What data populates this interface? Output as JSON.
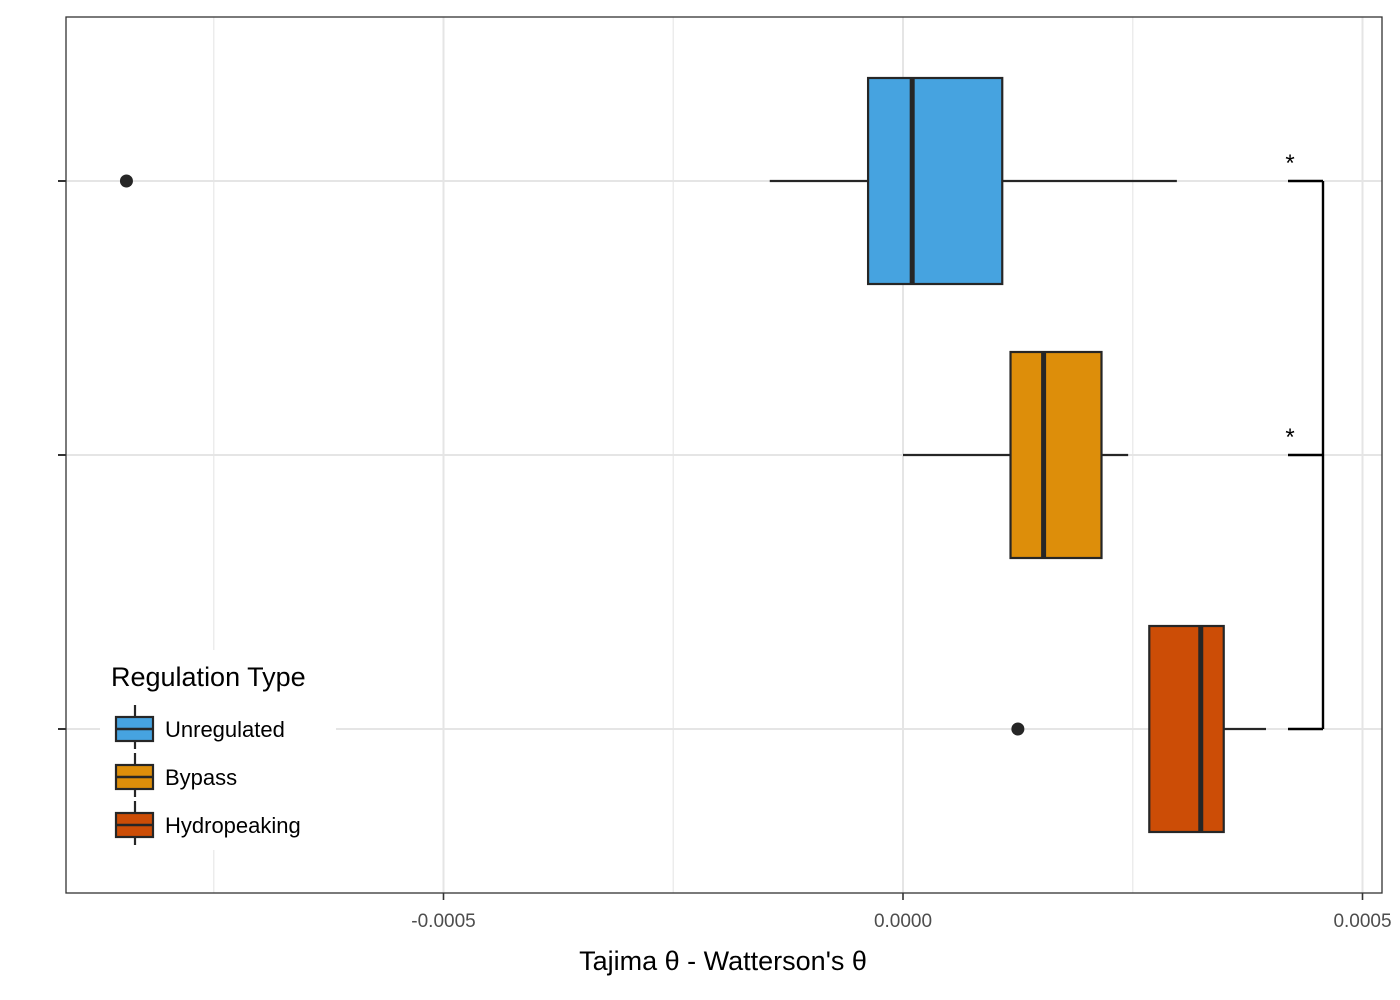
{
  "chart_data": {
    "type": "boxplot",
    "orientation": "horizontal",
    "xlabel": "Tajima θ - Watterson's θ",
    "xlim": [
      -0.00091,
      0.00052
    ],
    "x_ticks": [
      -0.0005,
      0.0,
      0.0005
    ],
    "x_tick_labels": [
      "-0.0005",
      "0.0000",
      "0.0005"
    ],
    "x_minor_gridlines": [
      -0.00075,
      -0.00025,
      0.00025
    ],
    "grid": true,
    "legend": {
      "title": "Regulation Type",
      "placement": "bottom-left",
      "entries": [
        "Unregulated",
        "Bypass",
        "Hydropeaking"
      ]
    },
    "series": [
      {
        "name": "Unregulated",
        "color": "#46A3E0",
        "whisker_low": -0.000145,
        "q1": -3.8e-05,
        "median": 1e-05,
        "q3": 0.000108,
        "whisker_high": 0.000298,
        "outliers": [
          -0.000845
        ]
      },
      {
        "name": "Bypass",
        "color": "#DD8E0A",
        "whisker_low": 0.0,
        "q1": 0.000117,
        "median": 0.000153,
        "q3": 0.000216,
        "whisker_high": 0.000245,
        "outliers": []
      },
      {
        "name": "Hydropeaking",
        "color": "#CC4D06",
        "whisker_low": 0.000268,
        "q1": 0.000268,
        "median": 0.000324,
        "q3": 0.000349,
        "whisker_high": 0.000395,
        "outliers": [
          0.000125
        ]
      }
    ],
    "significance": {
      "bracket_to": "Hydropeaking",
      "marks": [
        {
          "group": "Unregulated",
          "label": "*"
        },
        {
          "group": "Bypass",
          "label": "*"
        }
      ]
    }
  }
}
